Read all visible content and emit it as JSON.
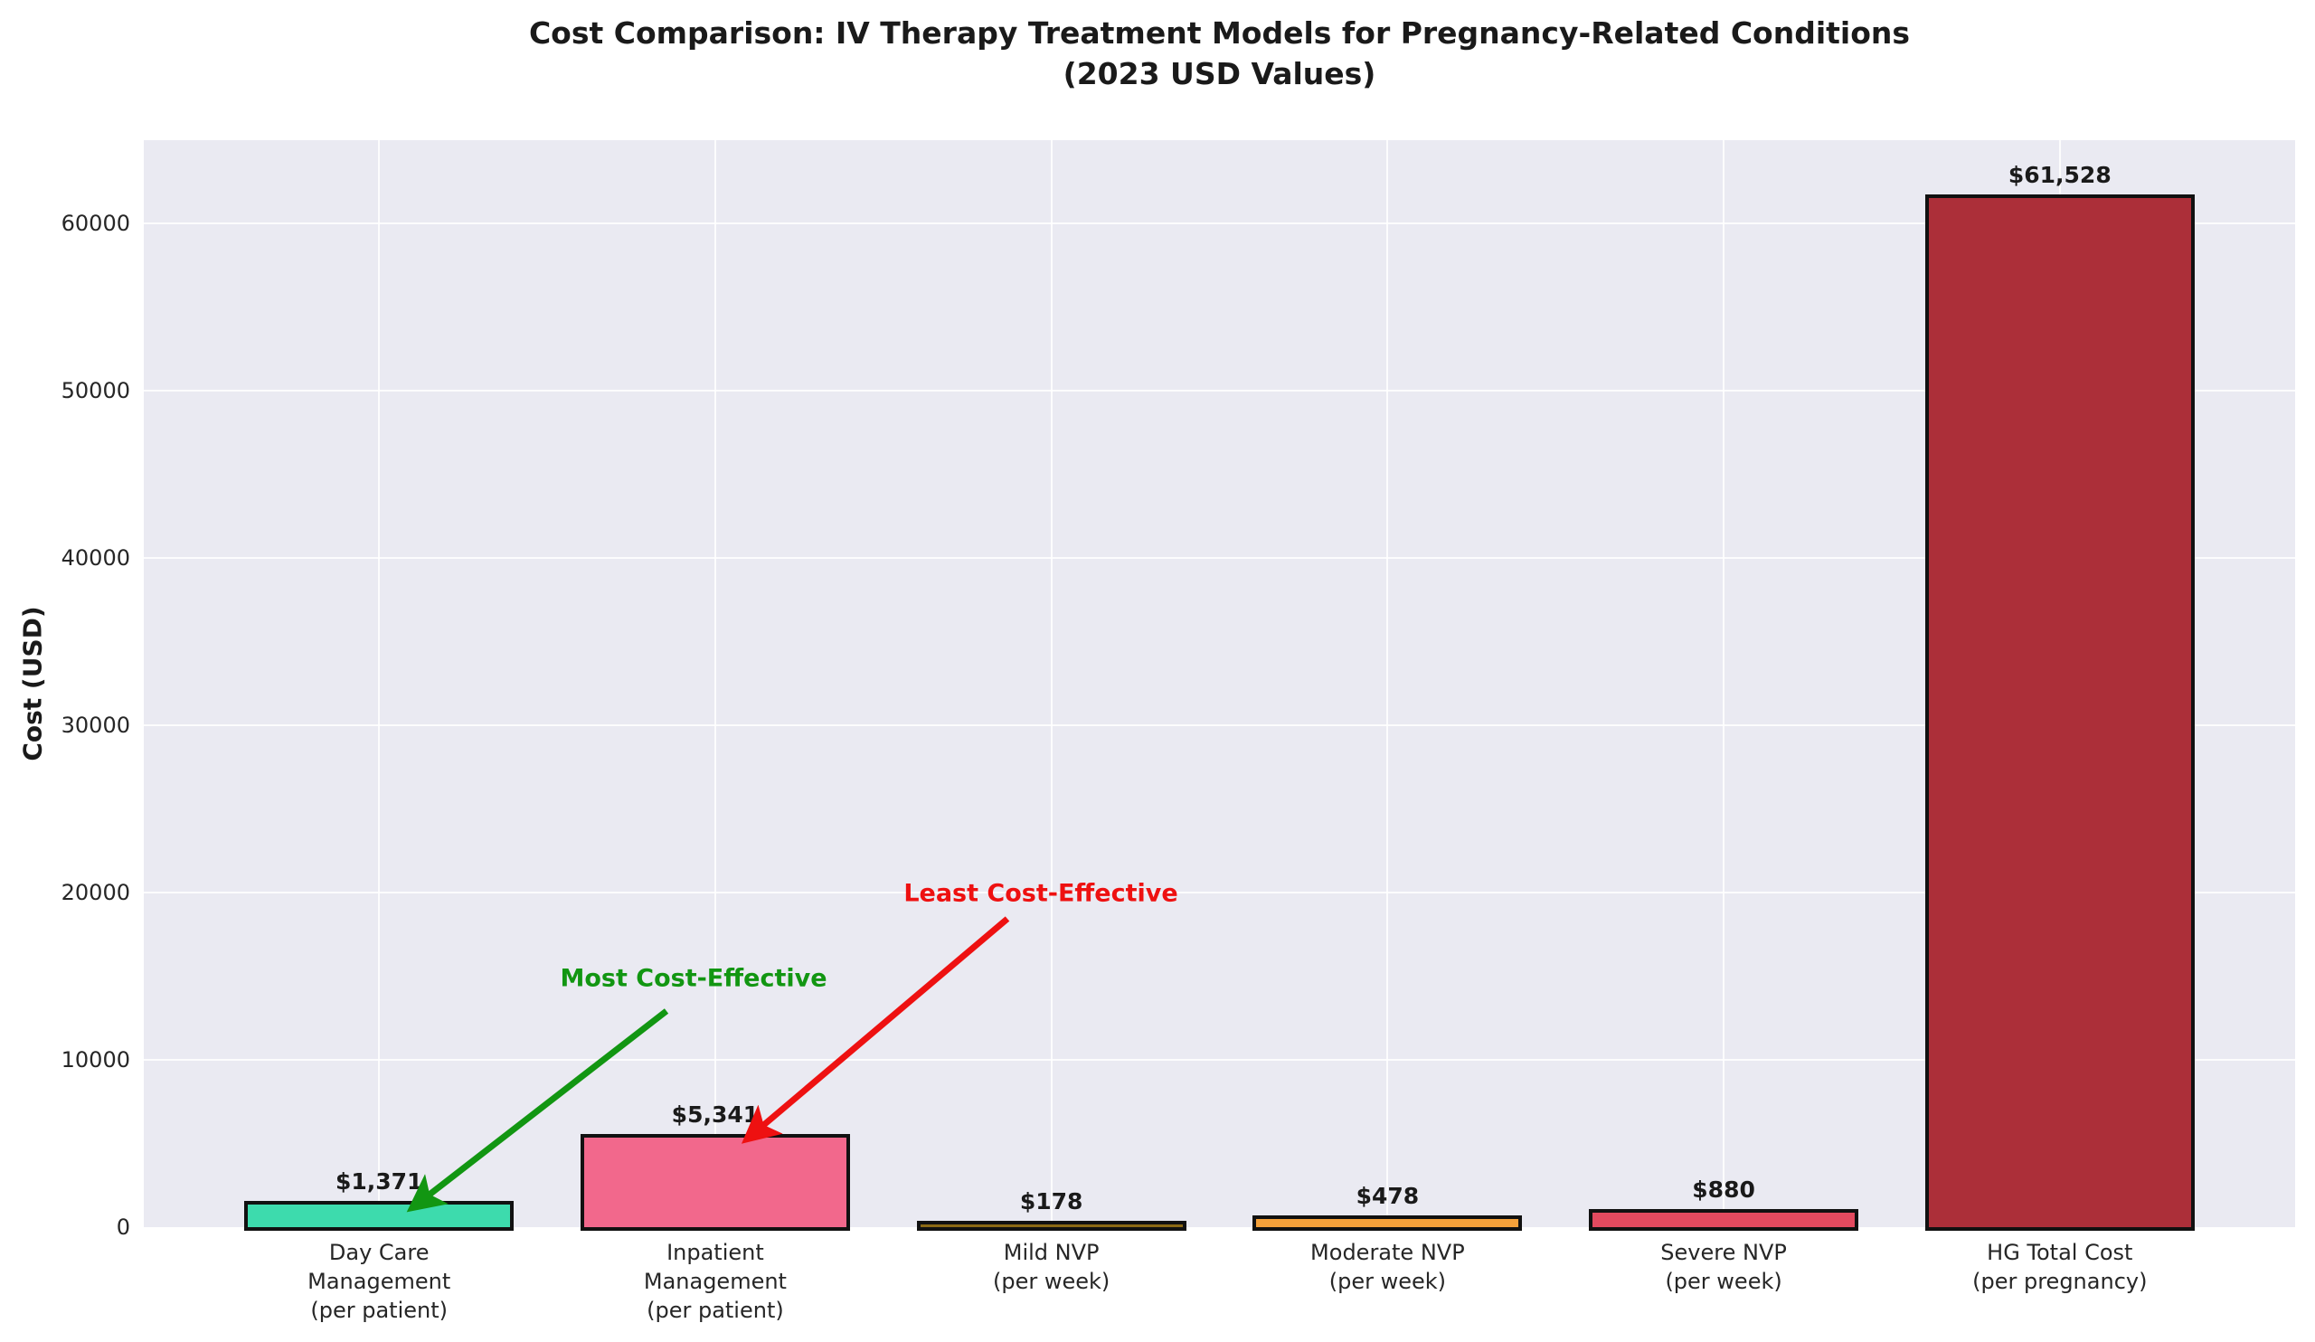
{
  "chart": {
    "title_line1": "Cost Comparison: IV Therapy Treatment Models for Pregnancy-Related Conditions",
    "title_line2": "(2023 USD Values)",
    "ylabel": "Cost (USD)"
  },
  "chart_data": {
    "type": "bar",
    "title": "Cost Comparison: IV Therapy Treatment Models for Pregnancy-Related Conditions",
    "subtitle": "(2023 USD Values)",
    "xlabel": "",
    "ylabel": "Cost (USD)",
    "ylim": [
      0,
      65000
    ],
    "yticks": [
      0,
      10000,
      20000,
      30000,
      40000,
      50000,
      60000
    ],
    "grid": true,
    "legend": "none",
    "plot_bg_color": "#EAEAF2",
    "grid_color": "#FFFFFF",
    "bar_edge_color": "#111111",
    "categories": [
      "Day Care\nManagement\n(per patient)",
      "Inpatient\nManagement\n(per patient)",
      "Mild NVP\n(per week)",
      "Moderate NVP\n(per week)",
      "Severe NVP\n(per week)",
      "HG Total Cost\n(per pregnancy)"
    ],
    "values": [
      1371,
      5341,
      178,
      478,
      880,
      61528
    ],
    "value_labels": [
      "$1,371",
      "$5,341",
      "$178",
      "$478",
      "$880",
      "$61,528"
    ],
    "bar_colors": [
      "#3DDBAD",
      "#F2688C",
      "#8B6914",
      "#F5A13A",
      "#E34A5F",
      "#AC2F39"
    ],
    "annotations": [
      {
        "text": "Most Cost-Effective",
        "color": "#129612",
        "target_category": "Day Care Management (per patient)",
        "target_index": 0
      },
      {
        "text": "Least Cost-Effective",
        "color": "#EE1111",
        "target_category": "Inpatient Management (per patient)",
        "target_index": 1
      }
    ]
  }
}
